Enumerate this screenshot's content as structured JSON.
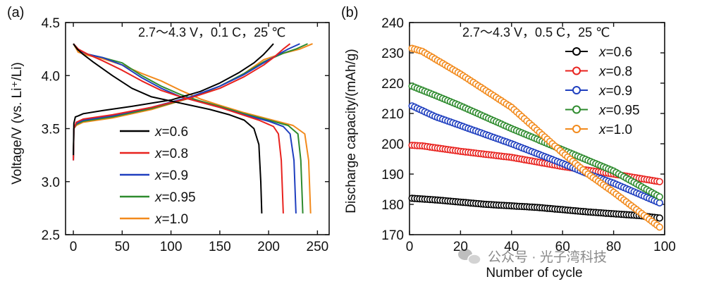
{
  "watermark": "公众号 · 光子湾科技",
  "chart_data": [
    {
      "panel_label": "(a)",
      "type": "line",
      "title": "2.7～4.3 V，0.1 C，25 ℃",
      "xlabel": "",
      "ylabel": "Voltage/V (vs. Li⁺/Li)",
      "xlim": [
        -8,
        262
      ],
      "ylim": [
        2.5,
        4.5
      ],
      "xticks": [
        0,
        50,
        100,
        150,
        200,
        250
      ],
      "yticks": [
        2.5,
        3.0,
        3.5,
        4.0,
        4.5
      ],
      "xtick_labels": [
        "0",
        "50",
        "100",
        "150",
        "200",
        "250"
      ],
      "ytick_labels": [
        "2.5",
        "3.0",
        "3.5",
        "4.0",
        "4.5"
      ],
      "legend_position": "bottom-center",
      "series": [
        {
          "name": "x=0.6",
          "color": "#000000",
          "charge": [
            [
              0,
              3.25
            ],
            [
              0.5,
              3.55
            ],
            [
              2,
              3.61
            ],
            [
              5,
              3.62
            ],
            [
              10,
              3.64
            ],
            [
              30,
              3.67
            ],
            [
              60,
              3.71
            ],
            [
              100,
              3.77
            ],
            [
              130,
              3.85
            ],
            [
              150,
              3.93
            ],
            [
              170,
              4.03
            ],
            [
              185,
              4.12
            ],
            [
              195,
              4.2
            ],
            [
              203,
              4.28
            ],
            [
              205,
              4.3
            ]
          ],
          "discharge": [
            [
              0,
              4.3
            ],
            [
              4,
              4.25
            ],
            [
              10,
              4.2
            ],
            [
              20,
              4.13
            ],
            [
              40,
              4.0
            ],
            [
              60,
              3.88
            ],
            [
              80,
              3.8
            ],
            [
              100,
              3.76
            ],
            [
              120,
              3.72
            ],
            [
              140,
              3.68
            ],
            [
              160,
              3.63
            ],
            [
              175,
              3.58
            ],
            [
              185,
              3.5
            ],
            [
              190,
              3.35
            ],
            [
              192,
              3.0
            ],
            [
              193,
              2.7
            ]
          ]
        },
        {
          "name": "x=0.8",
          "color": "#e8221e",
          "charge": [
            [
              0,
              3.2
            ],
            [
              0.5,
              3.5
            ],
            [
              3,
              3.56
            ],
            [
              10,
              3.59
            ],
            [
              40,
              3.63
            ],
            [
              80,
              3.7
            ],
            [
              120,
              3.79
            ],
            [
              150,
              3.88
            ],
            [
              175,
              3.99
            ],
            [
              195,
              4.1
            ],
            [
              205,
              4.17
            ],
            [
              215,
              4.25
            ],
            [
              222,
              4.3
            ]
          ],
          "discharge": [
            [
              0,
              4.3
            ],
            [
              5,
              4.25
            ],
            [
              15,
              4.2
            ],
            [
              30,
              4.14
            ],
            [
              50,
              4.05
            ],
            [
              70,
              3.95
            ],
            [
              90,
              3.86
            ],
            [
              110,
              3.8
            ],
            [
              130,
              3.75
            ],
            [
              150,
              3.7
            ],
            [
              170,
              3.64
            ],
            [
              190,
              3.58
            ],
            [
              205,
              3.52
            ],
            [
              210,
              3.45
            ],
            [
              213,
              3.2
            ],
            [
              215,
              2.7
            ]
          ]
        },
        {
          "name": "x=0.9",
          "color": "#1f3fbf",
          "charge": [
            [
              0,
              3.2
            ],
            [
              0.5,
              3.5
            ],
            [
              3,
              3.55
            ],
            [
              10,
              3.58
            ],
            [
              40,
              3.62
            ],
            [
              80,
              3.7
            ],
            [
              120,
              3.8
            ],
            [
              150,
              3.9
            ],
            [
              175,
              4.01
            ],
            [
              195,
              4.12
            ],
            [
              210,
              4.2
            ],
            [
              220,
              4.25
            ],
            [
              232,
              4.3
            ]
          ],
          "discharge": [
            [
              0,
              4.3
            ],
            [
              5,
              4.24
            ],
            [
              15,
              4.2
            ],
            [
              30,
              4.17
            ],
            [
              50,
              4.1
            ],
            [
              70,
              3.98
            ],
            [
              90,
              3.88
            ],
            [
              110,
              3.8
            ],
            [
              130,
              3.75
            ],
            [
              150,
              3.7
            ],
            [
              175,
              3.63
            ],
            [
              200,
              3.57
            ],
            [
              215,
              3.52
            ],
            [
              222,
              3.45
            ],
            [
              226,
              3.2
            ],
            [
              228,
              2.7
            ]
          ]
        },
        {
          "name": "x=0.95",
          "color": "#2e8b2e",
          "charge": [
            [
              0,
              3.22
            ],
            [
              0.5,
              3.5
            ],
            [
              3,
              3.54
            ],
            [
              10,
              3.57
            ],
            [
              40,
              3.61
            ],
            [
              80,
              3.69
            ],
            [
              120,
              3.79
            ],
            [
              150,
              3.9
            ],
            [
              175,
              4.02
            ],
            [
              195,
              4.13
            ],
            [
              215,
              4.21
            ],
            [
              228,
              4.25
            ],
            [
              240,
              4.3
            ]
          ],
          "discharge": [
            [
              0,
              4.3
            ],
            [
              5,
              4.24
            ],
            [
              15,
              4.2
            ],
            [
              30,
              4.17
            ],
            [
              50,
              4.12
            ],
            [
              70,
              4.0
            ],
            [
              90,
              3.9
            ],
            [
              110,
              3.82
            ],
            [
              130,
              3.76
            ],
            [
              150,
              3.71
            ],
            [
              175,
              3.64
            ],
            [
              200,
              3.58
            ],
            [
              220,
              3.53
            ],
            [
              230,
              3.45
            ],
            [
              233,
              3.2
            ],
            [
              235,
              2.7
            ]
          ]
        },
        {
          "name": "x=1.0",
          "color": "#f28a1c",
          "charge": [
            [
              0,
              3.24
            ],
            [
              0.5,
              3.5
            ],
            [
              3,
              3.53
            ],
            [
              10,
              3.56
            ],
            [
              40,
              3.6
            ],
            [
              80,
              3.68
            ],
            [
              120,
              3.79
            ],
            [
              150,
              3.9
            ],
            [
              175,
              4.02
            ],
            [
              195,
              4.15
            ],
            [
              215,
              4.21
            ],
            [
              232,
              4.25
            ],
            [
              245,
              4.3
            ]
          ],
          "discharge": [
            [
              0,
              4.3
            ],
            [
              5,
              4.22
            ],
            [
              15,
              4.19
            ],
            [
              30,
              4.16
            ],
            [
              50,
              4.1
            ],
            [
              70,
              4.02
            ],
            [
              90,
              3.95
            ],
            [
              110,
              3.86
            ],
            [
              130,
              3.78
            ],
            [
              150,
              3.72
            ],
            [
              175,
              3.65
            ],
            [
              200,
              3.59
            ],
            [
              225,
              3.53
            ],
            [
              237,
              3.45
            ],
            [
              241,
              3.2
            ],
            [
              243,
              2.7
            ]
          ]
        }
      ]
    },
    {
      "panel_label": "(b)",
      "type": "scatter",
      "title": "2.7～4.3 V，0.5 C，25 ℃",
      "xlabel": "Number of cycle",
      "ylabel": "Discharge capacity/(mAh/g)",
      "xlim": [
        0,
        100
      ],
      "ylim": [
        170,
        240
      ],
      "xticks": [
        0,
        20,
        40,
        60,
        80,
        100
      ],
      "yticks": [
        170,
        180,
        190,
        200,
        210,
        220,
        230,
        240
      ],
      "xtick_labels": [
        "0",
        "20",
        "40",
        "60",
        "80",
        "100"
      ],
      "ytick_labels": [
        "170",
        "180",
        "190",
        "200",
        "210",
        "220",
        "230",
        "240"
      ],
      "legend_position": "top-right",
      "marker": "open-circle",
      "series": [
        {
          "name": "x=0.6",
          "color": "#000000",
          "x_range": [
            1,
            98
          ],
          "points": [
            [
              1,
              182
            ],
            [
              10,
              181.5
            ],
            [
              30,
              180
            ],
            [
              50,
              179
            ],
            [
              70,
              177.5
            ],
            [
              90,
              176.3
            ],
            [
              98,
              175.5
            ]
          ]
        },
        {
          "name": "x=0.8",
          "color": "#e8221e",
          "x_range": [
            1,
            98
          ],
          "points": [
            [
              1,
              199.5
            ],
            [
              5,
              199.3
            ],
            [
              20,
              197.5
            ],
            [
              40,
              195.5
            ],
            [
              60,
              192.5
            ],
            [
              80,
              190
            ],
            [
              98,
              187.5
            ]
          ]
        },
        {
          "name": "x=0.9",
          "color": "#1f3fbf",
          "x_range": [
            1,
            98
          ],
          "points": [
            [
              1,
              212.5
            ],
            [
              10,
              209
            ],
            [
              20,
              206
            ],
            [
              40,
              200
            ],
            [
              60,
              193.5
            ],
            [
              70,
              190
            ],
            [
              80,
              187
            ],
            [
              98,
              180.5
            ]
          ]
        },
        {
          "name": "x=0.95",
          "color": "#2e8b2e",
          "x_range": [
            1,
            98
          ],
          "points": [
            [
              1,
              219
            ],
            [
              10,
              216
            ],
            [
              20,
              212.5
            ],
            [
              40,
              205
            ],
            [
              60,
              198
            ],
            [
              70,
              194.5
            ],
            [
              80,
              191
            ],
            [
              98,
              182.5
            ]
          ]
        },
        {
          "name": "x=1.0",
          "color": "#f28a1c",
          "x_range": [
            1,
            98
          ],
          "points": [
            [
              1,
              231.5
            ],
            [
              5,
              230.5
            ],
            [
              10,
              228
            ],
            [
              20,
              223
            ],
            [
              40,
              212
            ],
            [
              60,
              197
            ],
            [
              70,
              190
            ],
            [
              80,
              184
            ],
            [
              98,
              172.5
            ]
          ]
        }
      ]
    }
  ]
}
